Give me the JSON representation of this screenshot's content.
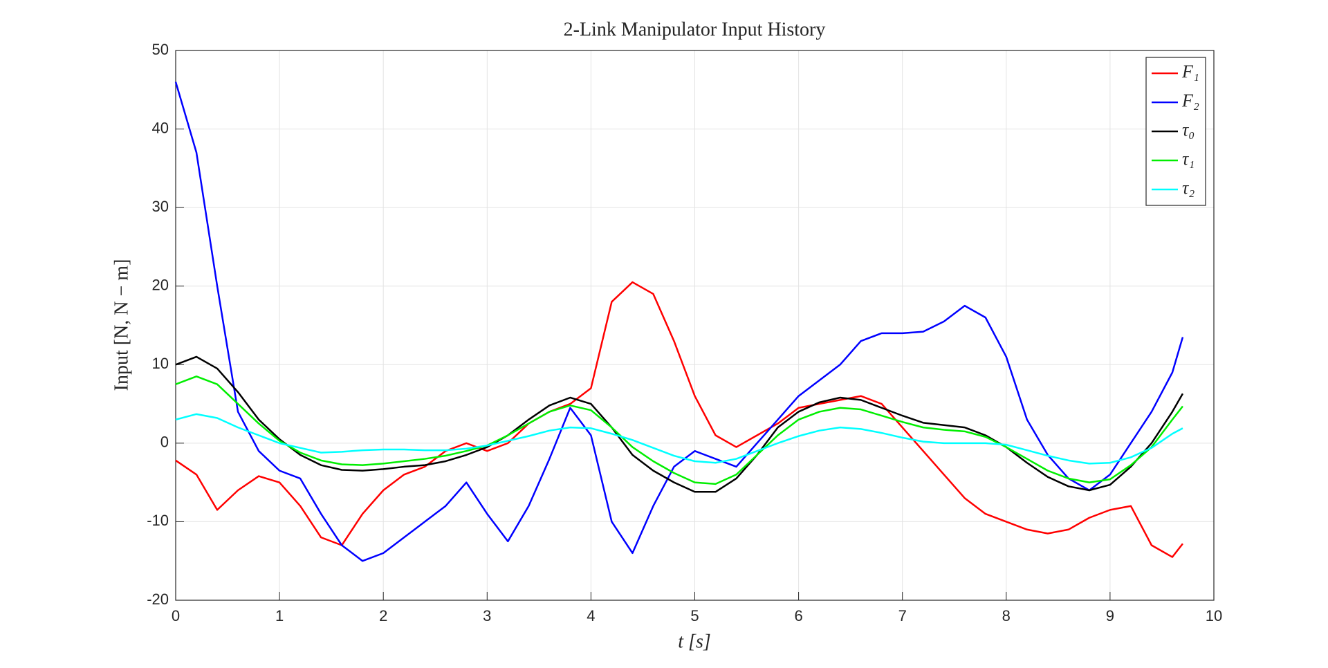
{
  "chart_data": {
    "type": "line",
    "title": "2-Link Manipulator Input History",
    "x_label": "t [s]",
    "y_label": "Input [N, N − m]",
    "x": [
      0,
      0.2,
      0.4,
      0.6,
      0.8,
      1.0,
      1.2,
      1.4,
      1.6,
      1.8,
      2.0,
      2.2,
      2.4,
      2.6,
      2.8,
      3.0,
      3.2,
      3.4,
      3.6,
      3.8,
      4.0,
      4.2,
      4.4,
      4.6,
      4.8,
      5.0,
      5.2,
      5.4,
      5.6,
      5.8,
      6.0,
      6.2,
      6.4,
      6.6,
      6.8,
      7.0,
      7.2,
      7.4,
      7.6,
      7.8,
      8.0,
      8.2,
      8.4,
      8.6,
      8.8,
      9.0,
      9.2,
      9.4,
      9.6,
      9.7
    ],
    "series": [
      {
        "name": "F₁",
        "color": "#ff0000",
        "values": [
          -2.2,
          -4,
          -8.5,
          -6,
          -4.2,
          -5,
          -8,
          -12,
          -13,
          -9,
          -6,
          -4,
          -3,
          -1,
          0,
          -1,
          0,
          2.5,
          4,
          5,
          7,
          18,
          20.5,
          19,
          13,
          6,
          1,
          -0.5,
          1,
          2.5,
          4.5,
          5,
          5.5,
          6,
          5,
          2,
          -1,
          -4,
          -7,
          -9,
          -10,
          -11,
          -11.5,
          -11,
          -9.5,
          -8.5,
          -8,
          -13,
          -14.5,
          -12.8
        ]
      },
      {
        "name": "F₂",
        "color": "#0000ff",
        "values": [
          46,
          37,
          20,
          4,
          -1,
          -3.5,
          -4.5,
          -9,
          -13,
          -15,
          -14,
          -12,
          -10,
          -8,
          -5,
          -9,
          -12.5,
          -8,
          -2,
          4.5,
          1,
          -10,
          -14,
          -8,
          -3,
          -1,
          -2,
          -3,
          0,
          3,
          6,
          8,
          10,
          13,
          14,
          14,
          14.2,
          15.5,
          17.5,
          16,
          11,
          3,
          -1.5,
          -4.5,
          -6,
          -4,
          0,
          4,
          9,
          13.5
        ]
      },
      {
        "name": "τ₀",
        "color": "#000000",
        "values": [
          10,
          11,
          9.5,
          6.5,
          3,
          0.5,
          -1.5,
          -2.8,
          -3.4,
          -3.5,
          -3.3,
          -3,
          -2.8,
          -2.3,
          -1.5,
          -0.5,
          1,
          3,
          4.8,
          5.8,
          5,
          2,
          -1.5,
          -3.5,
          -5,
          -6.2,
          -6.2,
          -4.5,
          -1.5,
          2,
          4,
          5.2,
          5.8,
          5.5,
          4.5,
          3.5,
          2.6,
          2.3,
          2,
          1,
          -0.5,
          -2.5,
          -4.3,
          -5.5,
          -6,
          -5.3,
          -3,
          0,
          4,
          6.3
        ]
      },
      {
        "name": "τ₁",
        "color": "#00ee00",
        "values": [
          7.5,
          8.5,
          7.5,
          5,
          2.5,
          0.3,
          -1.2,
          -2.2,
          -2.7,
          -2.8,
          -2.6,
          -2.3,
          -2,
          -1.6,
          -1,
          -0.3,
          1,
          2.5,
          4,
          4.8,
          4.2,
          2,
          -0.5,
          -2.3,
          -3.8,
          -5,
          -5.2,
          -4,
          -1.5,
          1,
          3,
          4,
          4.5,
          4.3,
          3.5,
          2.7,
          2,
          1.7,
          1.5,
          0.8,
          -0.5,
          -2,
          -3.5,
          -4.5,
          -5,
          -4.6,
          -2.8,
          -0.5,
          3,
          4.7
        ]
      },
      {
        "name": "τ₂",
        "color": "#00ffff",
        "values": [
          3,
          3.7,
          3.2,
          2,
          1,
          0,
          -0.6,
          -1.2,
          -1.1,
          -0.9,
          -0.8,
          -0.8,
          -0.9,
          -0.9,
          -0.7,
          -0.3,
          0.3,
          0.9,
          1.6,
          2,
          1.9,
          1.2,
          0.4,
          -0.6,
          -1.6,
          -2.3,
          -2.5,
          -2,
          -1,
          0,
          0.9,
          1.6,
          2,
          1.8,
          1.3,
          0.7,
          0.2,
          0,
          0,
          0,
          -0.2,
          -0.9,
          -1.6,
          -2.2,
          -2.6,
          -2.5,
          -1.8,
          -0.6,
          1.2,
          1.9
        ]
      }
    ],
    "xlim": [
      0,
      10
    ],
    "xticks": [
      0,
      1,
      2,
      3,
      4,
      5,
      6,
      7,
      8,
      9,
      10
    ],
    "ylim": [
      -20,
      50
    ],
    "yticks": [
      -20,
      -10,
      0,
      10,
      20,
      30,
      40,
      50
    ],
    "grid": true,
    "legend": "northeast"
  }
}
